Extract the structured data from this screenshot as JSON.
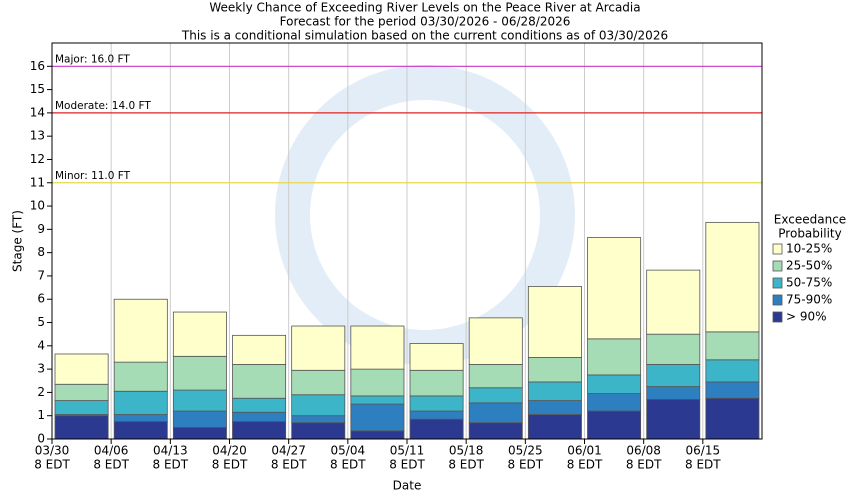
{
  "chart_data": {
    "type": "stacked_bar",
    "title": [
      "Weekly Chance of Exceeding River Levels on the Peace River at Arcadia",
      "Forecast for the period 03/30/2026 - 06/28/2026",
      "This is a conditional simulation based on the current conditions as of 03/30/2026"
    ],
    "y_label": "Stage (FT)",
    "x_label": "Date",
    "categories": [
      "03/30",
      "04/06",
      "04/13",
      "04/20",
      "04/27",
      "05/04",
      "05/11",
      "05/18",
      "05/25",
      "06/01",
      "06/08",
      "06/15"
    ],
    "x_sublabels": [
      "8 EDT",
      "8 EDT",
      "8 EDT",
      "8 EDT",
      "8 EDT",
      "8 EDT",
      "8 EDT",
      "8 EDT",
      "8 EDT",
      "8 EDT",
      "8 EDT",
      "8 EDT"
    ],
    "series": [
      {
        "name": "> 90%",
        "color": "#2b3990",
        "values": [
          1.0,
          0.75,
          0.5,
          0.75,
          0.7,
          0.35,
          0.85,
          0.7,
          1.05,
          1.2,
          1.7,
          1.75
        ]
      },
      {
        "name": "75-90%",
        "color": "#2e7fc0",
        "values": [
          0.05,
          0.3,
          0.7,
          0.4,
          0.3,
          1.15,
          0.35,
          0.85,
          0.6,
          0.75,
          0.55,
          0.7
        ]
      },
      {
        "name": "50-75%",
        "color": "#3db5c8",
        "values": [
          0.6,
          1.0,
          0.9,
          0.6,
          0.9,
          0.35,
          0.65,
          0.65,
          0.8,
          0.8,
          0.95,
          0.95
        ]
      },
      {
        "name": "25-50%",
        "color": "#a5dbb5",
        "values": [
          0.7,
          1.25,
          1.45,
          1.45,
          1.05,
          1.15,
          1.1,
          1.0,
          1.05,
          1.55,
          1.3,
          1.2
        ]
      },
      {
        "name": "10-25%",
        "color": "#ffffcc",
        "values": [
          1.3,
          2.7,
          1.9,
          1.25,
          1.9,
          1.85,
          1.15,
          2.0,
          3.05,
          4.35,
          2.75,
          4.7
        ]
      }
    ],
    "legend_title": [
      "Exceedance",
      "Probability"
    ],
    "thresholds": [
      {
        "label": "Major: 16.0 FT",
        "value": 16,
        "color": "#cc33cc"
      },
      {
        "label": "Moderate: 14.0 FT",
        "value": 14,
        "color": "#dd2222"
      },
      {
        "label": "Minor: 11.0 FT",
        "value": 11,
        "color": "#e6d84a"
      }
    ],
    "ylim": [
      0,
      17
    ],
    "yticks": [
      0,
      1,
      2,
      3,
      4,
      5,
      6,
      7,
      8,
      9,
      10,
      11,
      12,
      13,
      14,
      15,
      16
    ]
  }
}
